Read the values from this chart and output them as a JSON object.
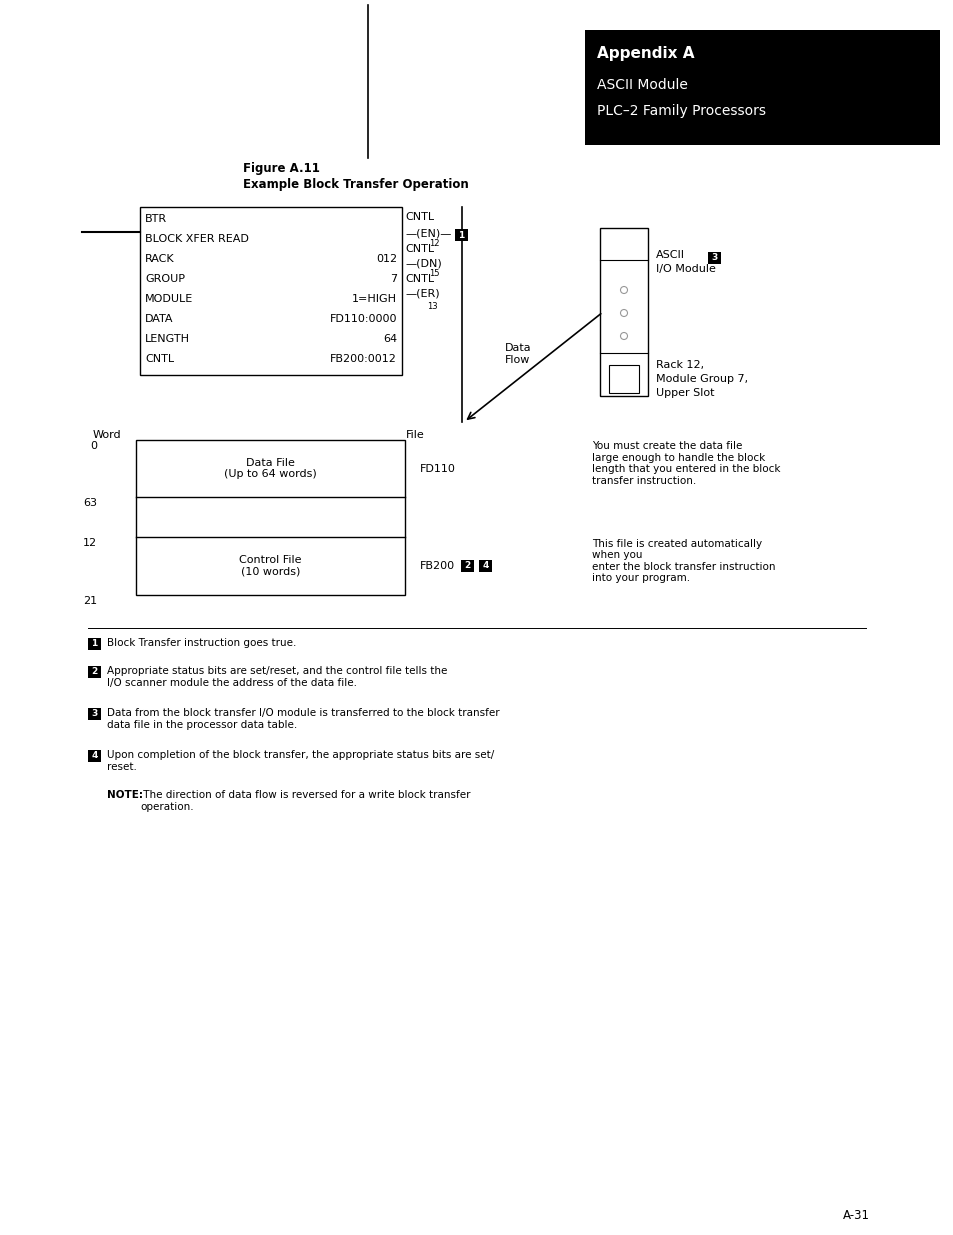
{
  "bg_color": "#ffffff",
  "header_line1": "Appendix A",
  "header_line2": "ASCII Module",
  "header_line3": "PLC–2 Family Processors",
  "fig_title_line1": "Figure A.11",
  "fig_title_line2": "Example Block Transfer Operation",
  "btr_rows": [
    [
      "BTR",
      ""
    ],
    [
      "BLOCK XFER READ",
      ""
    ],
    [
      "RACK",
      "012"
    ],
    [
      "GROUP",
      "7"
    ],
    [
      "MODULE",
      "1=HIGH"
    ],
    [
      "DATA",
      "FD110:0000"
    ],
    [
      "LENGTH",
      "64"
    ],
    [
      "CNTL",
      "FB200:0012"
    ]
  ],
  "right_note1": "You must create the data file\nlarge enough to handle the block\nlength that you entered in the block\ntransfer instruction.",
  "right_note2": "This file is created automatically\nwhen you\nenter the block transfer instruction\ninto your program.",
  "page_num": "A-31",
  "notes": [
    "Block Transfer instruction goes true.",
    "Appropriate status bits are set/reset, and the control file tells the\nI/O scanner module the address of the data file.",
    "Data from the block transfer I/O module is transferred to the block transfer\ndata file in the processor data table.",
    "Upon completion of the block transfer, the appropriate status bits are set/\nreset."
  ],
  "note_bold": "NOTE:",
  "note_italic": " The direction of data flow is reversed for a write block transfer\noperation."
}
